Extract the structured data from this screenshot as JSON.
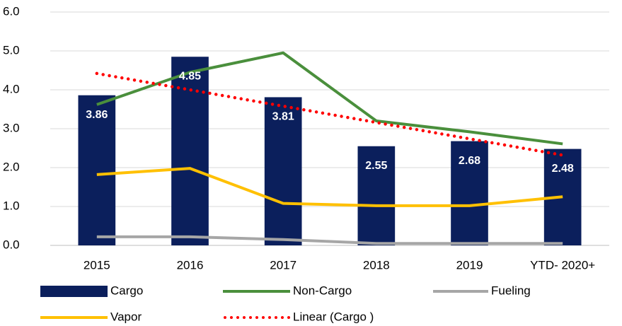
{
  "chart_data": {
    "type": "bar",
    "categories": [
      "2015",
      "2016",
      "2017",
      "2018",
      "2019",
      "YTD- 2020+"
    ],
    "series": [
      {
        "name": "Cargo",
        "type": "bar",
        "color": "#0b1f5c",
        "values": [
          3.86,
          4.85,
          3.81,
          2.55,
          2.68,
          2.48
        ],
        "data_labels": true
      },
      {
        "name": "Non-Cargo",
        "type": "line",
        "color": "#4a8f3c",
        "values": [
          3.62,
          4.45,
          4.95,
          3.2,
          2.92,
          2.61
        ]
      },
      {
        "name": "Fueling",
        "type": "line",
        "color": "#a6a6a6",
        "values": [
          0.22,
          0.22,
          0.15,
          0.05,
          0.05,
          0.05
        ]
      },
      {
        "name": "Vapor",
        "type": "line",
        "color": "#ffc000",
        "values": [
          1.82,
          1.98,
          1.08,
          1.02,
          1.02,
          1.25
        ]
      },
      {
        "name": "Linear (Cargo )",
        "type": "line",
        "style": "dotted",
        "color": "#ff0000",
        "values": [
          4.42,
          4.0,
          3.58,
          3.16,
          2.74,
          2.32
        ]
      }
    ],
    "ylim": [
      0,
      6
    ],
    "yticks": [
      {
        "value": 0,
        "label": "0.0"
      },
      {
        "value": 1,
        "label": "1.0"
      },
      {
        "value": 2,
        "label": "2.0"
      },
      {
        "value": 3,
        "label": "3.0"
      },
      {
        "value": 4,
        "label": "4.0"
      },
      {
        "value": 5,
        "label": "5.0"
      },
      {
        "value": 6,
        "label": "6.0"
      }
    ],
    "grid": true,
    "legend": "bottom"
  }
}
